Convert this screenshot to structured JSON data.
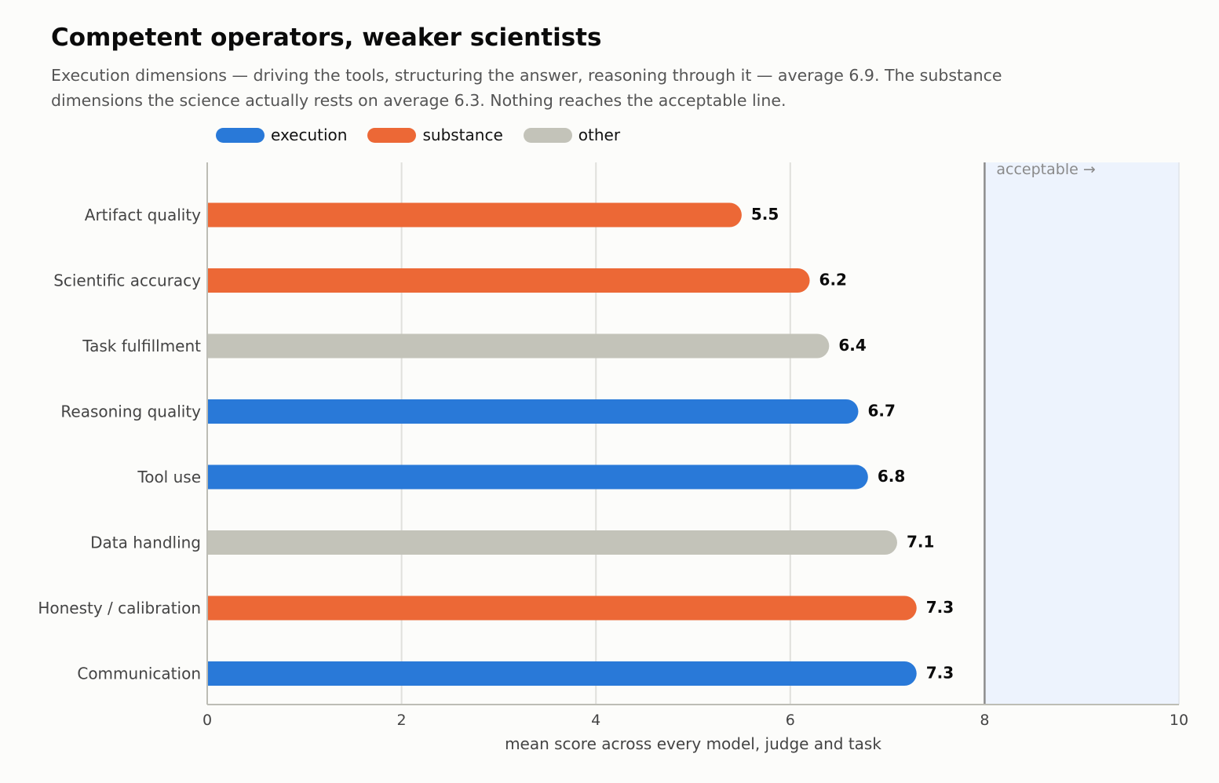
{
  "header": {
    "title": "Competent operators, weaker scientists",
    "subtitle": "Execution dimensions — driving the tools, structuring the answer, reasoning through it — average 6.9. The substance dimensions the science actually rests on average 6.3. Nothing reaches the acceptable line."
  },
  "legend": [
    {
      "key": "execution",
      "label": "execution",
      "color": "#2979d8"
    },
    {
      "key": "substance",
      "label": "substance",
      "color": "#ec6836"
    },
    {
      "key": "other",
      "label": "other",
      "color": "#c3c3b9"
    }
  ],
  "chart_data": {
    "type": "bar",
    "orientation": "horizontal",
    "title": "Competent operators, weaker scientists",
    "xlabel": "mean score across every model, judge and task",
    "ylabel": "",
    "xlim": [
      0,
      10
    ],
    "xticks": [
      0,
      2,
      4,
      6,
      8,
      10
    ],
    "grid": true,
    "legend_position": "top",
    "categories": [
      "Artifact quality",
      "Scientific accuracy",
      "Task fulfillment",
      "Reasoning quality",
      "Tool use",
      "Data handling",
      "Honesty / calibration",
      "Communication"
    ],
    "values": [
      5.5,
      6.2,
      6.4,
      6.7,
      6.8,
      7.1,
      7.3,
      7.3
    ],
    "groups": [
      "substance",
      "substance",
      "other",
      "execution",
      "execution",
      "other",
      "substance",
      "execution"
    ],
    "value_labels": [
      "5.5",
      "6.2",
      "6.4",
      "6.7",
      "6.8",
      "7.1",
      "7.3",
      "7.3"
    ],
    "threshold": {
      "value": 8,
      "label": "acceptable  →",
      "region_color": "#edf3fd"
    }
  }
}
